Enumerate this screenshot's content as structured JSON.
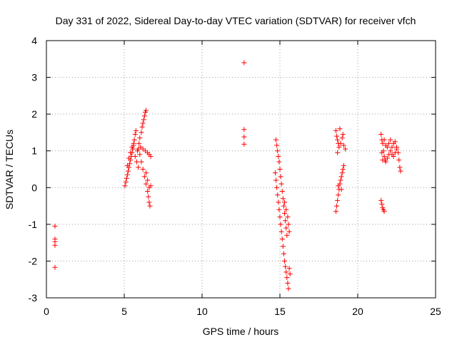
{
  "chart_data": {
    "type": "scatter",
    "title": "Day 331 of 2022, Sidereal Day-to-day VTEC variation (SDTVAR) for receiver vfch",
    "xlabel": "GPS time / hours",
    "ylabel": "SDTVAR / TECUs",
    "xlim": [
      0,
      25
    ],
    "ylim": [
      -3,
      4
    ],
    "xticks": [
      0,
      5,
      10,
      15,
      20,
      25
    ],
    "yticks": [
      -3,
      -2,
      -1,
      0,
      1,
      2,
      3,
      4
    ],
    "grid": true,
    "marker": "+",
    "color": "#ff0000",
    "series": [
      {
        "name": "SDTVAR",
        "points": [
          [
            0.55,
            -1.05
          ],
          [
            0.55,
            -1.4
          ],
          [
            0.55,
            -1.47
          ],
          [
            0.55,
            -1.57
          ],
          [
            0.55,
            -2.17
          ],
          [
            5.05,
            0.05
          ],
          [
            5.1,
            0.15
          ],
          [
            5.15,
            0.25
          ],
          [
            5.2,
            0.35
          ],
          [
            5.25,
            0.45
          ],
          [
            5.3,
            0.55
          ],
          [
            5.35,
            0.65
          ],
          [
            5.4,
            0.75
          ],
          [
            5.45,
            0.85
          ],
          [
            5.5,
            0.95
          ],
          [
            5.55,
            1.05
          ],
          [
            5.6,
            1.15
          ],
          [
            5.65,
            1.3
          ],
          [
            5.7,
            1.45
          ],
          [
            5.75,
            1.55
          ],
          [
            5.2,
            0.6
          ],
          [
            5.3,
            0.8
          ],
          [
            5.4,
            0.95
          ],
          [
            5.5,
            1.1
          ],
          [
            5.6,
            1.2
          ],
          [
            5.7,
            0.85
          ],
          [
            5.8,
            0.7
          ],
          [
            5.9,
            0.55
          ],
          [
            5.85,
            1.0
          ],
          [
            5.95,
            1.2
          ],
          [
            6.0,
            1.35
          ],
          [
            6.1,
            1.5
          ],
          [
            6.15,
            1.65
          ],
          [
            6.2,
            1.75
          ],
          [
            6.25,
            1.85
          ],
          [
            6.3,
            1.95
          ],
          [
            6.35,
            2.05
          ],
          [
            6.4,
            2.1
          ],
          [
            5.9,
            1.05
          ],
          [
            6.05,
            1.1
          ],
          [
            6.2,
            1.05
          ],
          [
            6.35,
            1.0
          ],
          [
            6.5,
            0.95
          ],
          [
            6.6,
            0.9
          ],
          [
            6.7,
            0.85
          ],
          [
            6.0,
            0.9
          ],
          [
            6.1,
            0.7
          ],
          [
            6.2,
            0.5
          ],
          [
            6.3,
            0.3
          ],
          [
            6.4,
            0.1
          ],
          [
            6.5,
            -0.1
          ],
          [
            6.55,
            -0.25
          ],
          [
            6.6,
            -0.4
          ],
          [
            6.65,
            -0.5
          ],
          [
            6.4,
            0.4
          ],
          [
            6.5,
            0.2
          ],
          [
            6.6,
            0.0
          ],
          [
            6.7,
            0.05
          ],
          [
            12.7,
            3.4
          ],
          [
            12.7,
            1.58
          ],
          [
            12.7,
            1.38
          ],
          [
            12.7,
            1.18
          ],
          [
            14.75,
            1.3
          ],
          [
            14.8,
            1.15
          ],
          [
            14.85,
            1.0
          ],
          [
            14.9,
            0.85
          ],
          [
            14.95,
            0.7
          ],
          [
            15.0,
            0.5
          ],
          [
            15.05,
            0.3
          ],
          [
            15.1,
            0.1
          ],
          [
            15.15,
            -0.1
          ],
          [
            15.2,
            -0.3
          ],
          [
            15.25,
            -0.5
          ],
          [
            15.3,
            -0.7
          ],
          [
            15.35,
            -0.9
          ],
          [
            15.4,
            -1.1
          ],
          [
            15.45,
            -1.3
          ],
          [
            14.7,
            0.4
          ],
          [
            14.75,
            0.2
          ],
          [
            14.8,
            0.0
          ],
          [
            14.85,
            -0.2
          ],
          [
            14.9,
            -0.4
          ],
          [
            14.95,
            -0.6
          ],
          [
            15.0,
            -0.8
          ],
          [
            15.05,
            -1.0
          ],
          [
            15.1,
            -1.2
          ],
          [
            15.15,
            -1.4
          ],
          [
            15.2,
            -1.6
          ],
          [
            15.25,
            -1.8
          ],
          [
            15.3,
            -2.0
          ],
          [
            15.35,
            -2.15
          ],
          [
            15.4,
            -2.3
          ],
          [
            15.45,
            -2.45
          ],
          [
            15.5,
            -2.6
          ],
          [
            15.55,
            -2.75
          ],
          [
            15.3,
            -0.4
          ],
          [
            15.4,
            -0.6
          ],
          [
            15.5,
            -0.8
          ],
          [
            15.55,
            -1.0
          ],
          [
            15.6,
            -1.2
          ],
          [
            15.6,
            -2.2
          ],
          [
            15.65,
            -2.35
          ],
          [
            18.6,
            1.55
          ],
          [
            18.65,
            1.4
          ],
          [
            18.7,
            1.3
          ],
          [
            18.75,
            1.2
          ],
          [
            18.8,
            1.1
          ],
          [
            18.9,
            1.2
          ],
          [
            19.0,
            1.35
          ],
          [
            19.05,
            1.45
          ],
          [
            18.85,
            1.6
          ],
          [
            18.7,
            0.95
          ],
          [
            19.1,
            1.15
          ],
          [
            19.2,
            1.05
          ],
          [
            18.6,
            -0.65
          ],
          [
            18.65,
            -0.5
          ],
          [
            18.7,
            -0.35
          ],
          [
            18.75,
            -0.2
          ],
          [
            18.8,
            -0.05
          ],
          [
            18.85,
            0.1
          ],
          [
            18.9,
            0.2
          ],
          [
            18.95,
            0.3
          ],
          [
            19.0,
            0.4
          ],
          [
            19.05,
            0.5
          ],
          [
            19.1,
            0.6
          ],
          [
            18.75,
            0.05
          ],
          [
            18.95,
            -0.05
          ],
          [
            21.5,
            1.45
          ],
          [
            21.55,
            1.3
          ],
          [
            21.6,
            1.2
          ],
          [
            21.65,
            1.0
          ],
          [
            21.7,
            0.85
          ],
          [
            21.6,
            0.75
          ],
          [
            21.8,
            0.7
          ],
          [
            21.9,
            0.8
          ],
          [
            22.0,
            0.9
          ],
          [
            22.1,
            1.0
          ],
          [
            22.2,
            1.1
          ],
          [
            22.3,
            1.2
          ],
          [
            22.4,
            1.25
          ],
          [
            22.5,
            1.1
          ],
          [
            22.6,
            0.95
          ],
          [
            22.65,
            0.75
          ],
          [
            22.7,
            0.55
          ],
          [
            22.75,
            0.45
          ],
          [
            21.7,
            1.3
          ],
          [
            21.8,
            1.15
          ],
          [
            21.9,
            1.1
          ],
          [
            22.0,
            1.2
          ],
          [
            22.1,
            1.3
          ],
          [
            22.2,
            0.9
          ],
          [
            22.3,
            0.85
          ],
          [
            22.4,
            0.95
          ],
          [
            22.5,
            1.05
          ],
          [
            21.55,
            0.95
          ],
          [
            21.75,
            0.75
          ],
          [
            21.5,
            -0.35
          ],
          [
            21.55,
            -0.45
          ],
          [
            21.6,
            -0.55
          ],
          [
            21.65,
            -0.6
          ],
          [
            21.7,
            -0.65
          ]
        ]
      }
    ]
  }
}
